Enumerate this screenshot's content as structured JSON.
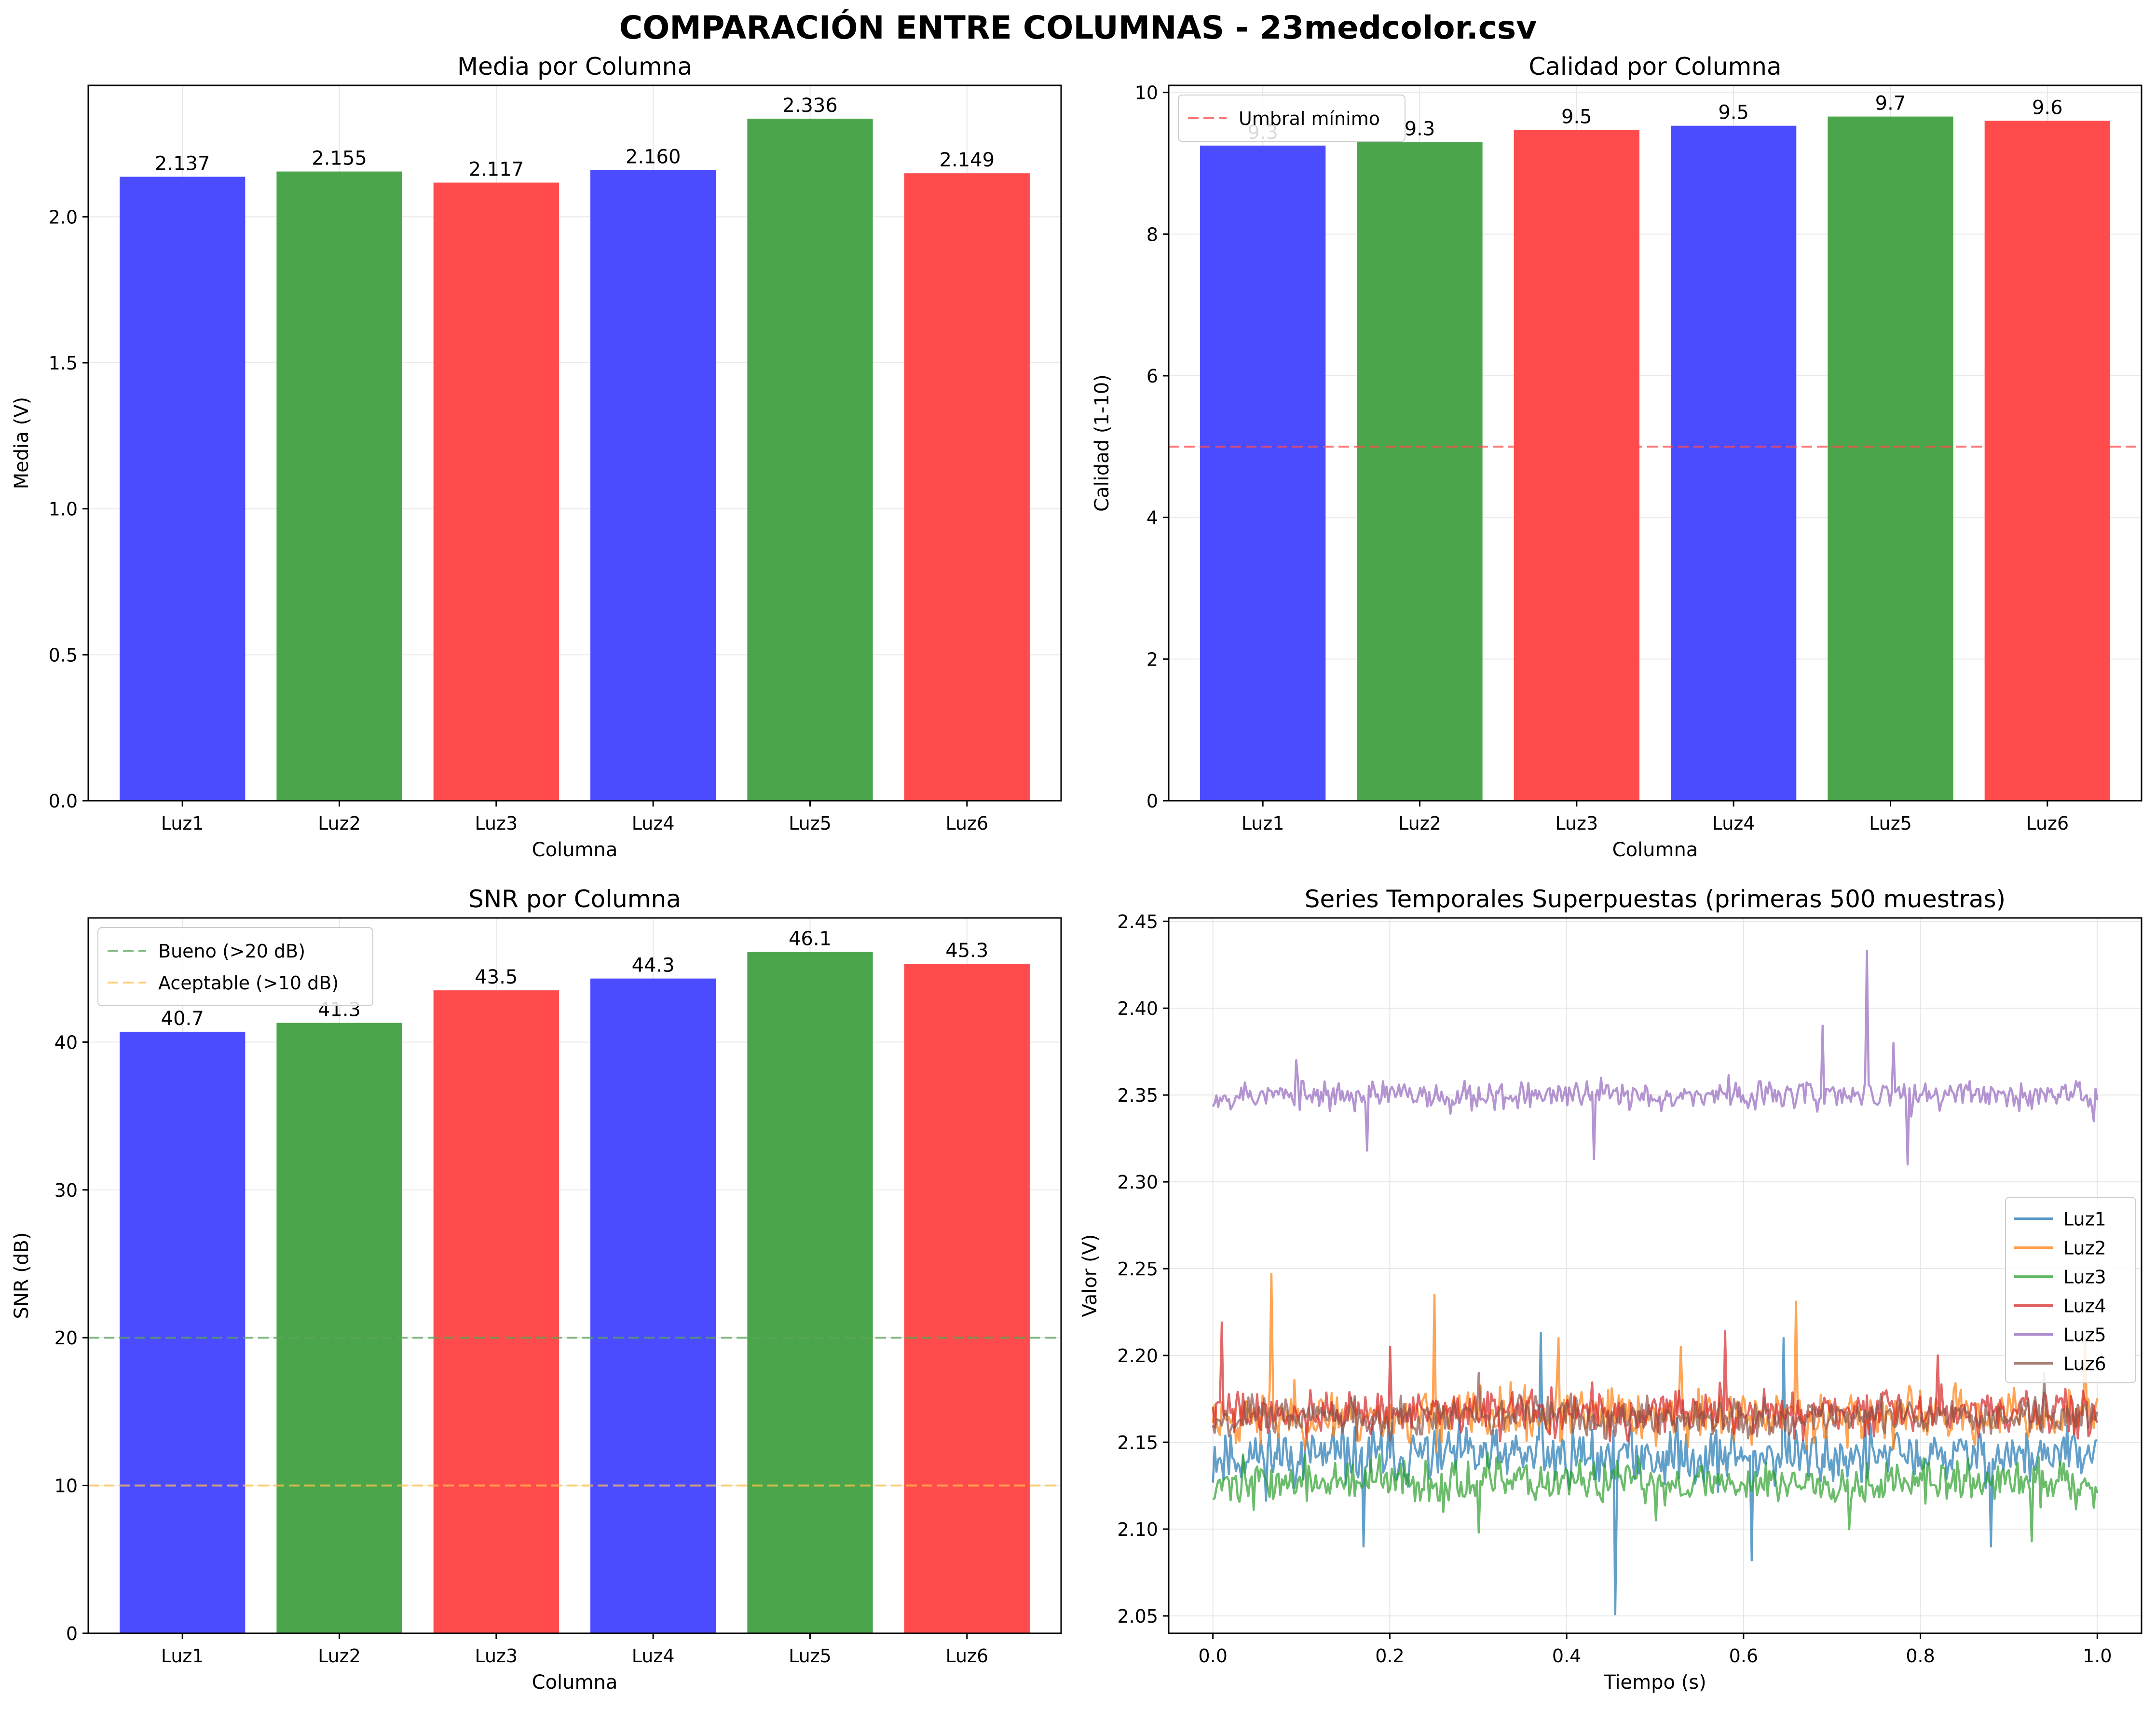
{
  "figure": {
    "title": "COMPARACIÓN ENTRE COLUMNAS - 23medcolor.csv"
  },
  "chart_data": [
    {
      "type": "bar",
      "title": "Media por Columna",
      "xlabel": "Columna",
      "ylabel": "Media (V)",
      "categories": [
        "Luz1",
        "Luz2",
        "Luz3",
        "Luz4",
        "Luz5",
        "Luz6"
      ],
      "values": [
        2.137,
        2.155,
        2.117,
        2.16,
        2.336,
        2.149
      ],
      "value_labels": [
        "2.137",
        "2.155",
        "2.117",
        "2.160",
        "2.336",
        "2.149"
      ],
      "bar_colors": [
        "#4b4bff",
        "#4ba64b",
        "#ff4b4b",
        "#4b4bff",
        "#4ba64b",
        "#ff4b4b"
      ],
      "ylim": [
        0,
        2.45
      ],
      "yticks": [
        0,
        0.5,
        1.0,
        1.5,
        2.0
      ],
      "ytick_labels": [
        "0.0",
        "0.5",
        "1.0",
        "1.5",
        "2.0"
      ],
      "grid": true
    },
    {
      "type": "bar",
      "title": "Calidad por Columna",
      "xlabel": "Columna",
      "ylabel": "Calidad (1-10)",
      "categories": [
        "Luz1",
        "Luz2",
        "Luz3",
        "Luz4",
        "Luz5",
        "Luz6"
      ],
      "values": [
        9.25,
        9.3,
        9.47,
        9.53,
        9.66,
        9.6
      ],
      "value_labels": [
        "9.3",
        "9.3",
        "9.5",
        "9.5",
        "9.7",
        "9.6"
      ],
      "bar_colors": [
        "#4b4bff",
        "#4ba64b",
        "#ff4b4b",
        "#4b4bff",
        "#4ba64b",
        "#ff4b4b"
      ],
      "ylim": [
        0,
        10.1
      ],
      "yticks": [
        0,
        2,
        4,
        6,
        8,
        10
      ],
      "ytick_labels": [
        "0",
        "2",
        "4",
        "6",
        "8",
        "10"
      ],
      "hlines": [
        {
          "y": 5,
          "color": "#ff4b4b",
          "label": "Umbral mínimo"
        }
      ],
      "legend_position": "top-left",
      "grid": true
    },
    {
      "type": "bar",
      "title": "SNR por Columna",
      "xlabel": "Columna",
      "ylabel": "SNR (dB)",
      "categories": [
        "Luz1",
        "Luz2",
        "Luz3",
        "Luz4",
        "Luz5",
        "Luz6"
      ],
      "values": [
        40.7,
        41.3,
        43.5,
        44.3,
        46.1,
        45.3
      ],
      "value_labels": [
        "40.7",
        "41.3",
        "43.5",
        "44.3",
        "46.1",
        "45.3"
      ],
      "bar_colors": [
        "#4b4bff",
        "#4ba64b",
        "#ff4b4b",
        "#4b4bff",
        "#4ba64b",
        "#ff4b4b"
      ],
      "ylim": [
        0,
        48.4
      ],
      "yticks": [
        0,
        10,
        20,
        30,
        40
      ],
      "ytick_labels": [
        "0",
        "10",
        "20",
        "30",
        "40"
      ],
      "hlines": [
        {
          "y": 20,
          "color": "#5aa65a",
          "label": "Bueno (>20 dB)"
        },
        {
          "y": 10,
          "color": "#ffc04b",
          "label": "Aceptable (>10 dB)"
        }
      ],
      "legend_position": "top-left",
      "grid": true
    },
    {
      "type": "line",
      "title": "Series Temporales Superpuestas (primeras 500 muestras)",
      "xlabel": "Tiempo (s)",
      "ylabel": "Valor (V)",
      "xlim": [
        -0.05,
        1.05
      ],
      "ylim": [
        2.04,
        2.452
      ],
      "xticks": [
        0.0,
        0.2,
        0.4,
        0.6,
        0.8,
        1.0
      ],
      "xtick_labels": [
        "0.0",
        "0.2",
        "0.4",
        "0.6",
        "0.8",
        "1.0"
      ],
      "yticks": [
        2.05,
        2.1,
        2.15,
        2.2,
        2.25,
        2.3,
        2.35,
        2.4,
        2.45
      ],
      "ytick_labels": [
        "2.05",
        "2.10",
        "2.15",
        "2.20",
        "2.25",
        "2.30",
        "2.35",
        "2.40",
        "2.45"
      ],
      "x_range": [
        0.0,
        1.0
      ],
      "samples": 500,
      "legend_position": "center-right",
      "grid": true,
      "series": [
        {
          "name": "Luz1",
          "color": "#1f77b4",
          "mean": 2.142,
          "noise": 0.012,
          "seed": 11,
          "spikes": [
            [
              0.455,
              2.051
            ],
            [
              0.61,
              2.082
            ],
            [
              0.37,
              2.213
            ],
            [
              0.645,
              2.21
            ],
            [
              0.17,
              2.09
            ],
            [
              0.88,
              2.09
            ]
          ]
        },
        {
          "name": "Luz2",
          "color": "#ff7f0e",
          "mean": 2.165,
          "noise": 0.011,
          "seed": 23,
          "spikes": [
            [
              0.066,
              2.247
            ],
            [
              0.25,
              2.235
            ],
            [
              0.66,
              2.231
            ],
            [
              0.985,
              2.21
            ],
            [
              0.39,
              2.21
            ],
            [
              0.53,
              2.205
            ]
          ]
        },
        {
          "name": "Luz3",
          "color": "#2ca02c",
          "mean": 2.127,
          "noise": 0.009,
          "seed": 37,
          "spikes": [
            [
              0.925,
              2.093
            ],
            [
              0.3,
              2.098
            ],
            [
              0.72,
              2.1
            ],
            [
              0.5,
              2.105
            ]
          ]
        },
        {
          "name": "Luz4",
          "color": "#d62728",
          "mean": 2.167,
          "noise": 0.009,
          "seed": 41,
          "spikes": [
            [
              0.01,
              2.219
            ],
            [
              0.58,
              2.214
            ],
            [
              0.2,
              2.205
            ],
            [
              0.82,
              2.2
            ]
          ]
        },
        {
          "name": "Luz5",
          "color": "#9467bd",
          "mean": 2.35,
          "noise": 0.006,
          "seed": 53,
          "spikes": [
            [
              0.74,
              2.433
            ],
            [
              0.69,
              2.39
            ],
            [
              0.77,
              2.38
            ],
            [
              0.095,
              2.37
            ],
            [
              0.43,
              2.313
            ],
            [
              0.175,
              2.318
            ],
            [
              0.785,
              2.31
            ],
            [
              0.995,
              2.335
            ]
          ]
        },
        {
          "name": "Luz6",
          "color": "#8c564b",
          "mean": 2.165,
          "noise": 0.008,
          "seed": 67,
          "spikes": [
            [
              0.94,
              2.19
            ],
            [
              0.3,
              2.19
            ]
          ]
        }
      ]
    }
  ]
}
